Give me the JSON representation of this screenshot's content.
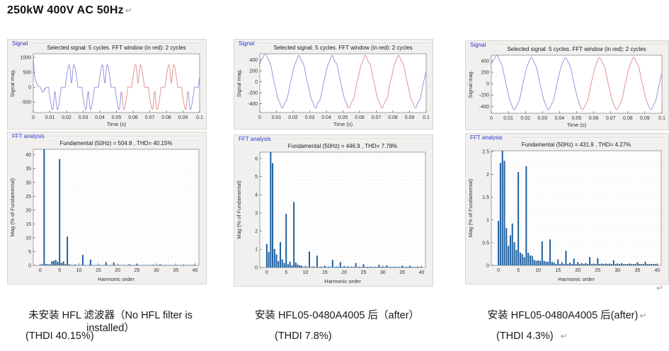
{
  "page": {
    "title": "250kW 400V AC 50Hz",
    "return_mark": "↵"
  },
  "figures": [
    {
      "signal": {
        "panel_label": "Signal"
      },
      "fft": {
        "panel_label": "FFT analysis"
      },
      "caption_line1": "未安装 HFL 滤波器（No HFL filter is installed）",
      "caption_line2": "(THDI 40.15%)"
    },
    {
      "signal": {
        "panel_label": "Signal"
      },
      "fft": {
        "panel_label": "FFT analysis"
      },
      "caption_line1": "安装 HFL05-0480A4005 后（after）",
      "caption_line2": "(THDI 7.8%)"
    },
    {
      "signal": {
        "panel_label": "Signal"
      },
      "fft": {
        "panel_label": "FFT analysis"
      },
      "caption_line1": "安装 HFL05-0480A4005 后(after)",
      "caption_line2": "(THDI 4.3%)"
    }
  ],
  "chart_data": [
    {
      "type": "line",
      "title": "Selected signal: 5 cycles. FFT window (in red): 2 cycles",
      "xlabel": "Time (s)",
      "ylabel": "Signal mag.",
      "xlim": [
        0,
        0.1
      ],
      "ylim": [
        -850,
        1120
      ],
      "xticks": [
        0,
        0.01,
        0.02,
        0.03,
        0.04,
        0.05,
        0.06,
        0.07,
        0.08,
        0.09,
        0.1
      ],
      "yticks": [
        -500,
        0,
        500,
        1000
      ],
      "grid": null,
      "fundamental_hz": 50,
      "cycles_shown": 5,
      "fft_window_s": [
        0.053,
        0.093
      ],
      "colors": {
        "signal": "#8a8ade",
        "window": "#de8a8a"
      },
      "waveform": {
        "kind": "rectifier",
        "peak": 960,
        "notch": 0.85,
        "conduction_start": 0.17,
        "conduction_end": 0.93,
        "period_s": 0.02,
        "phase_offset_s": 0.0175,
        "start_spike": 1050,
        "start_dip": -230
      }
    },
    {
      "type": "bar",
      "title": "Fundamental (50Hz) = 504.8 , THD= 40.15%",
      "xlabel": "Harmonic order",
      "ylabel": "Mag (% of Fundamental)",
      "xlim": [
        -1.8,
        41
      ],
      "ylim": [
        0,
        42
      ],
      "xticks": [
        0,
        5,
        10,
        15,
        20,
        25,
        30,
        35,
        40
      ],
      "yticks": [
        0,
        5,
        10,
        15,
        20,
        25,
        30,
        35,
        40
      ],
      "grid": {
        "x_minor": 1,
        "y_minor": 1
      },
      "bar_color": "#20609f",
      "baseline": {
        "step": 0.5,
        "from": 0,
        "to": 40,
        "value": 0.15
      },
      "points": [
        [
          0.5,
          0.4
        ],
        [
          1,
          100
        ],
        [
          1.5,
          0.5
        ],
        [
          2,
          0.4
        ],
        [
          2.5,
          0.35
        ],
        [
          3,
          1.5
        ],
        [
          3.5,
          1.6
        ],
        [
          4,
          2.0
        ],
        [
          4.5,
          1.3
        ],
        [
          5,
          38.5
        ],
        [
          5.5,
          0.9
        ],
        [
          6,
          1.4
        ],
        [
          6.5,
          0.45
        ],
        [
          7,
          10.4
        ],
        [
          7.5,
          0.35
        ],
        [
          8,
          0.2
        ],
        [
          9,
          0.3
        ],
        [
          10,
          0.12
        ],
        [
          11,
          3.8
        ],
        [
          12,
          0.1
        ],
        [
          13,
          2.1
        ],
        [
          14,
          0.1
        ],
        [
          15,
          0.15
        ],
        [
          16,
          0.1
        ],
        [
          17,
          1.2
        ],
        [
          18,
          0.1
        ],
        [
          19,
          1.1
        ],
        [
          20,
          0.12
        ],
        [
          21,
          0.1
        ],
        [
          22,
          0.1
        ],
        [
          23,
          0.4
        ],
        [
          24,
          0.1
        ],
        [
          25,
          0.5
        ],
        [
          26,
          0.08
        ],
        [
          27,
          0.1
        ],
        [
          28,
          0.08
        ],
        [
          29,
          0.25
        ],
        [
          30,
          0.1
        ],
        [
          31,
          0.35
        ],
        [
          32,
          0.06
        ],
        [
          33,
          0.1
        ],
        [
          34,
          0.06
        ],
        [
          35,
          0.12
        ],
        [
          36,
          0.06
        ],
        [
          37,
          0.25
        ],
        [
          38,
          0.06
        ],
        [
          39,
          0.08
        ]
      ]
    },
    {
      "type": "line",
      "title": "Selected signal: 5 cycles. FFT window (in red): 2 cycles",
      "xlabel": "Time (s)",
      "ylabel": "Signal mag.",
      "xlim": [
        0,
        0.1
      ],
      "ylim": [
        -560,
        510
      ],
      "xticks": [
        0,
        0.01,
        0.02,
        0.03,
        0.04,
        0.05,
        0.06,
        0.07,
        0.08,
        0.09,
        0.1
      ],
      "yticks": [
        -400,
        -200,
        0,
        200,
        400
      ],
      "grid": null,
      "fundamental_hz": 50,
      "cycles_shown": 5,
      "fft_window_s": [
        0.053,
        0.093
      ],
      "colors": {
        "signal": "#8a8ade",
        "window": "#de8a8a"
      },
      "waveform": {
        "kind": "sine",
        "amplitude": 455,
        "phase_rad": 0.45,
        "harmonics": [
          {
            "n": 5,
            "pct": 2.95,
            "phase_rad": 3.14
          },
          {
            "n": 7,
            "pct": 3.6,
            "phase_rad": 0
          }
        ],
        "start_transient": {
          "amp": 120,
          "tau_s": 0.003
        }
      }
    },
    {
      "type": "bar",
      "title": "Fundamental (50Hz) = 446.9 , THD= 7.78%",
      "xlabel": "Harmonic order",
      "ylabel": "Mag (% of Fundamental)",
      "xlim": [
        -1.8,
        41
      ],
      "ylim": [
        0,
        6.35
      ],
      "xticks": [
        0,
        5,
        10,
        15,
        20,
        25,
        30,
        35,
        40
      ],
      "yticks": [
        0,
        1,
        2,
        3,
        4,
        5,
        6
      ],
      "grid": {
        "x_minor": 1,
        "y_minor": 0.2
      },
      "bar_color": "#20609f",
      "baseline": {
        "step": 0.5,
        "from": 0,
        "to": 40,
        "value": 0.03
      },
      "points": [
        [
          0,
          1.3
        ],
        [
          0.5,
          0.85
        ],
        [
          1,
          100
        ],
        [
          1.5,
          5.75
        ],
        [
          2,
          1.02
        ],
        [
          2.5,
          0.72
        ],
        [
          3,
          0.35
        ],
        [
          3.5,
          1.4
        ],
        [
          4,
          0.45
        ],
        [
          4.5,
          0.25
        ],
        [
          5,
          2.95
        ],
        [
          5.5,
          0.18
        ],
        [
          6,
          0.32
        ],
        [
          6.5,
          0.12
        ],
        [
          7,
          3.6
        ],
        [
          7.5,
          0.28
        ],
        [
          8,
          0.16
        ],
        [
          8.5,
          0.12
        ],
        [
          9,
          0.1
        ],
        [
          10,
          0.06
        ],
        [
          11,
          0.88
        ],
        [
          12,
          0.06
        ],
        [
          13,
          0.65
        ],
        [
          14,
          0.05
        ],
        [
          15,
          0.08
        ],
        [
          16,
          0.05
        ],
        [
          17,
          0.42
        ],
        [
          18,
          0.05
        ],
        [
          19,
          0.3
        ],
        [
          20,
          0.06
        ],
        [
          21,
          0.06
        ],
        [
          22,
          0.05
        ],
        [
          23,
          0.25
        ],
        [
          24,
          0.05
        ],
        [
          25,
          0.18
        ],
        [
          26,
          0.04
        ],
        [
          27,
          0.05
        ],
        [
          28,
          0.04
        ],
        [
          29,
          0.15
        ],
        [
          30,
          0.05
        ],
        [
          31,
          0.12
        ],
        [
          32,
          0.04
        ],
        [
          33,
          0.05
        ],
        [
          34,
          0.04
        ],
        [
          35,
          0.1
        ],
        [
          36,
          0.04
        ],
        [
          37,
          0.1
        ],
        [
          38,
          0.03
        ],
        [
          39,
          0.05
        ]
      ]
    },
    {
      "type": "line",
      "title": "Selected signal: 5 cycles. FFT window (in red): 2 cycles",
      "xlabel": "Time (s)",
      "ylabel": "Signal mag.",
      "xlim": [
        0,
        0.1
      ],
      "ylim": [
        -520,
        500
      ],
      "xticks": [
        0,
        0.01,
        0.02,
        0.03,
        0.04,
        0.05,
        0.06,
        0.07,
        0.08,
        0.09,
        0.1
      ],
      "yticks": [
        -400,
        -200,
        0,
        200,
        400
      ],
      "grid": null,
      "fundamental_hz": 50,
      "cycles_shown": 5,
      "fft_window_s": [
        0.053,
        0.093
      ],
      "colors": {
        "signal": "#8a8ade",
        "window": "#de8a8a"
      },
      "waveform": {
        "kind": "sine",
        "amplitude": 442,
        "phase_rad": 0.45,
        "harmonics": [
          {
            "n": 5,
            "pct": 2.05,
            "phase_rad": 3.14
          },
          {
            "n": 7,
            "pct": 2.18,
            "phase_rad": 0
          }
        ],
        "start_transient": {
          "amp": 150,
          "tau_s": 0.0025
        }
      }
    },
    {
      "type": "bar",
      "title": "Fundamental (50Hz) = 431.9 , THD= 4.27%",
      "xlabel": "Harmonic order",
      "ylabel": "Mag (% of Fundamental)",
      "xlim": [
        -1.8,
        41
      ],
      "ylim": [
        0,
        2.52
      ],
      "xticks": [
        0,
        5,
        10,
        15,
        20,
        25,
        30,
        35,
        40
      ],
      "yticks": [
        0,
        0.5,
        1,
        1.5,
        2,
        2.5
      ],
      "grid": {
        "x_minor": 1,
        "y_minor": 0.05
      },
      "bar_color": "#20609f",
      "baseline": {
        "step": 0.5,
        "from": 0,
        "to": 40,
        "value": 0.03
      },
      "points": [
        [
          0,
          0.98
        ],
        [
          0.5,
          2.25
        ],
        [
          1,
          100
        ],
        [
          1.5,
          2.3
        ],
        [
          2,
          0.82
        ],
        [
          2.5,
          0.43
        ],
        [
          3,
          0.66
        ],
        [
          3.5,
          0.92
        ],
        [
          4,
          0.51
        ],
        [
          4.5,
          0.34
        ],
        [
          5,
          2.05
        ],
        [
          5.5,
          0.28
        ],
        [
          6,
          0.25
        ],
        [
          6.5,
          0.18
        ],
        [
          7,
          2.18
        ],
        [
          7.5,
          0.28
        ],
        [
          8,
          0.22
        ],
        [
          8.5,
          0.21
        ],
        [
          9,
          0.12
        ],
        [
          9.5,
          0.1
        ],
        [
          10,
          0.11
        ],
        [
          10.5,
          0.1
        ],
        [
          11,
          0.53
        ],
        [
          11.5,
          0.1
        ],
        [
          12,
          0.08
        ],
        [
          12.5,
          0.08
        ],
        [
          13,
          0.57
        ],
        [
          13.5,
          0.08
        ],
        [
          14,
          0.06
        ],
        [
          15,
          0.13
        ],
        [
          16,
          0.07
        ],
        [
          17,
          0.32
        ],
        [
          18,
          0.06
        ],
        [
          19,
          0.15
        ],
        [
          20,
          0.07
        ],
        [
          21,
          0.05
        ],
        [
          22,
          0.05
        ],
        [
          23,
          0.18
        ],
        [
          24,
          0.04
        ],
        [
          25,
          0.16
        ],
        [
          26,
          0.04
        ],
        [
          27,
          0.04
        ],
        [
          28,
          0.04
        ],
        [
          29,
          0.11
        ],
        [
          30,
          0.04
        ],
        [
          31,
          0.05
        ],
        [
          33,
          0.04
        ],
        [
          35,
          0.07
        ],
        [
          36,
          0.03
        ],
        [
          37,
          0.08
        ],
        [
          39,
          0.03
        ]
      ]
    }
  ]
}
